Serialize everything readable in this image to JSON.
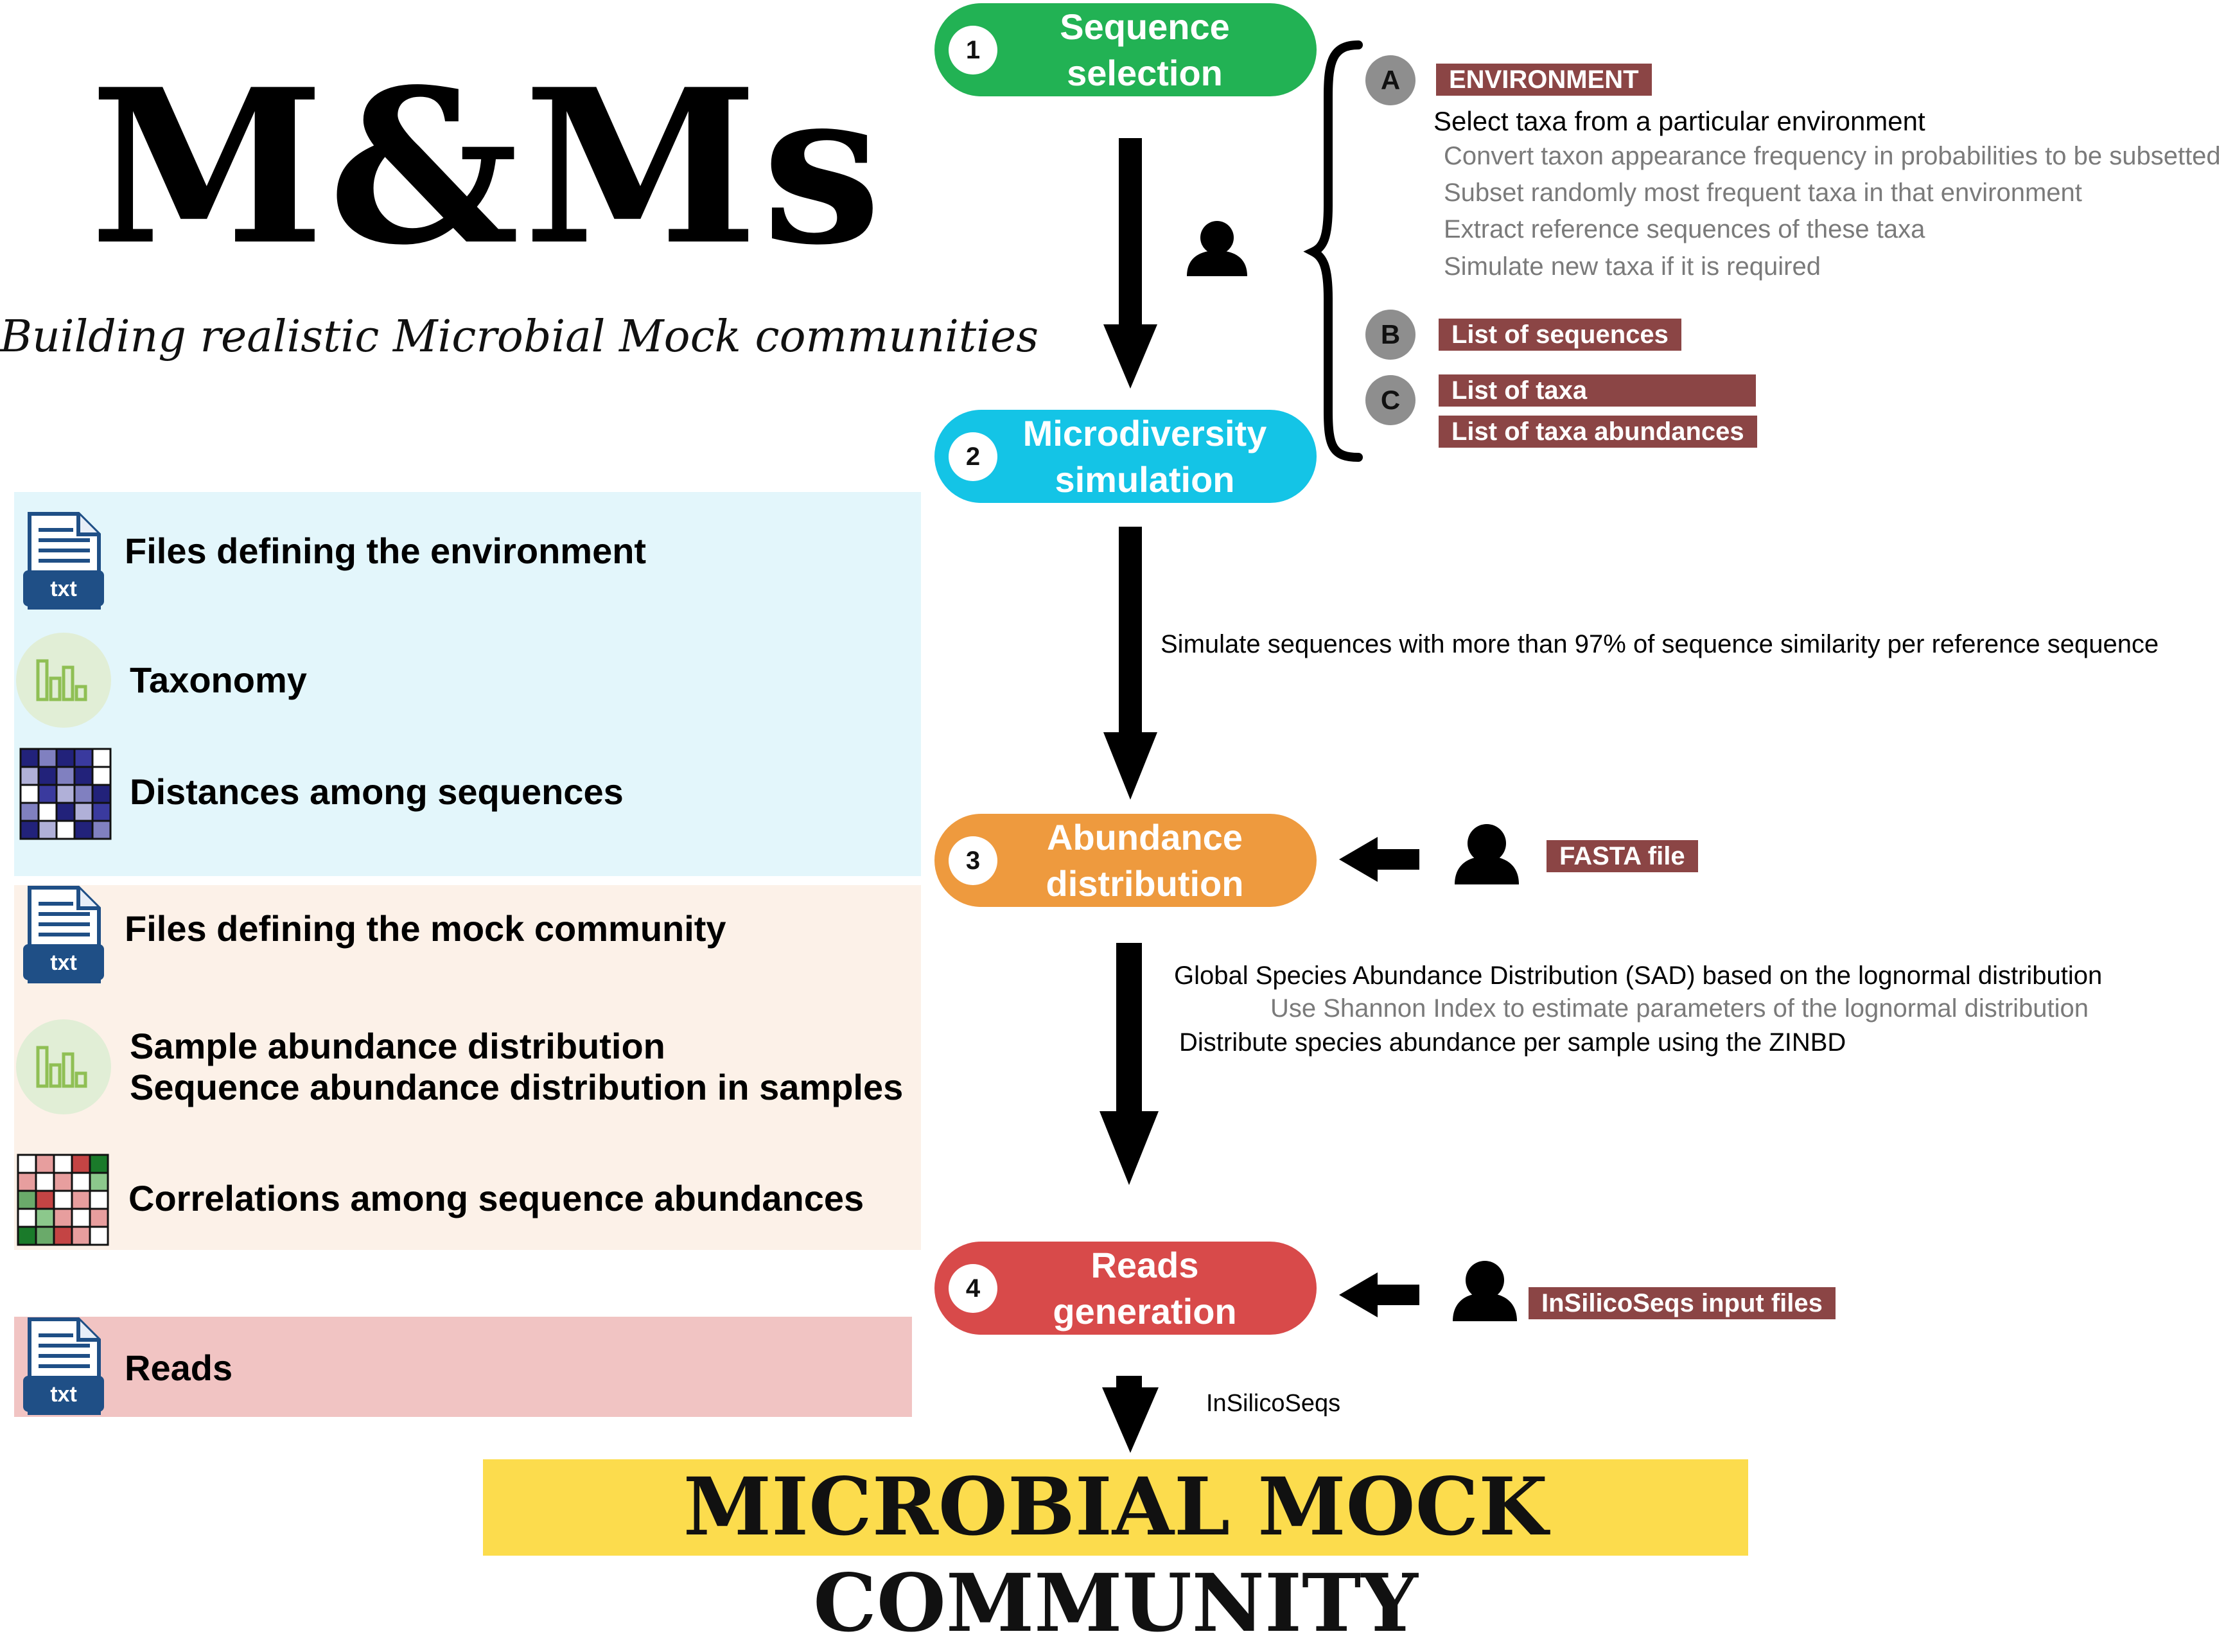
{
  "header": {
    "logo": "M&Ms",
    "tagline": "Building realistic Microbial Mock communities"
  },
  "panels": {
    "environment": {
      "color": "#e3f6fb",
      "rows": [
        {
          "icon": "txt-file-icon",
          "icon_text": "txt",
          "label": "Files defining the environment"
        },
        {
          "icon": "bar-chart-icon",
          "label": "Taxonomy"
        },
        {
          "icon": "distance-heatmap-icon",
          "label": "Distances among sequences"
        }
      ]
    },
    "mock_community": {
      "color": "#fcf1e8",
      "rows": [
        {
          "icon": "txt-file-icon",
          "icon_text": "txt",
          "label": "Files defining the mock community"
        },
        {
          "icon": "bar-chart-icon",
          "label_line1": "Sample abundance distribution",
          "label_line2": "Sequence abundance distribution in samples"
        },
        {
          "icon": "correlation-heatmap-icon",
          "label": "Correlations among sequence abundances"
        }
      ]
    },
    "reads": {
      "color": "#f1c4c3",
      "rows": [
        {
          "icon": "txt-file-icon",
          "icon_text": "txt",
          "label": "Reads"
        }
      ]
    }
  },
  "stages": [
    {
      "num": "1",
      "title": "Sequence\nselection",
      "color": "#22b254"
    },
    {
      "num": "2",
      "title": "Microdiversity\nsimulation",
      "color": "#14c4e6"
    },
    {
      "num": "3",
      "title": "Abundance\ndistribution",
      "color": "#ee9a3e"
    },
    {
      "num": "4",
      "title": "Reads\ngeneration",
      "color": "#d84a4a"
    }
  ],
  "selection_options": {
    "A": {
      "letter": "A",
      "tag": "ENVIRONMENT",
      "main": "Select taxa from a particular environment",
      "steps": [
        "Convert  taxon appearance frequency in probabilities to be subsetted",
        "Subset randomly most frequent taxa in that environment",
        "Extract reference sequences of these taxa",
        "Simulate new taxa if it is required"
      ]
    },
    "B": {
      "letter": "B",
      "tag": "List of sequences"
    },
    "C": {
      "letter": "C",
      "tags": [
        "List of taxa",
        "List of taxa abundances"
      ]
    }
  },
  "transitions": {
    "t2_3": "Simulate sequences with more than 97% of sequence similarity per reference sequence",
    "t3_4_main": "Global Species Abundance Distribution (SAD) based on the lognormal distribution",
    "t3_4_sub": "Use Shannon Index to estimate parameters of the lognormal distribution",
    "t3_4_second": "Distribute species abundance per sample using the ZINBD",
    "t4_final": "InSilicoSeqs"
  },
  "user_inputs": {
    "abundance": "FASTA file",
    "reads": "InSilicoSeqs input files"
  },
  "final": "MICROBIAL MOCK COMMUNITY",
  "tag_color": "#8b4545",
  "final_color": "#fcdc4d"
}
